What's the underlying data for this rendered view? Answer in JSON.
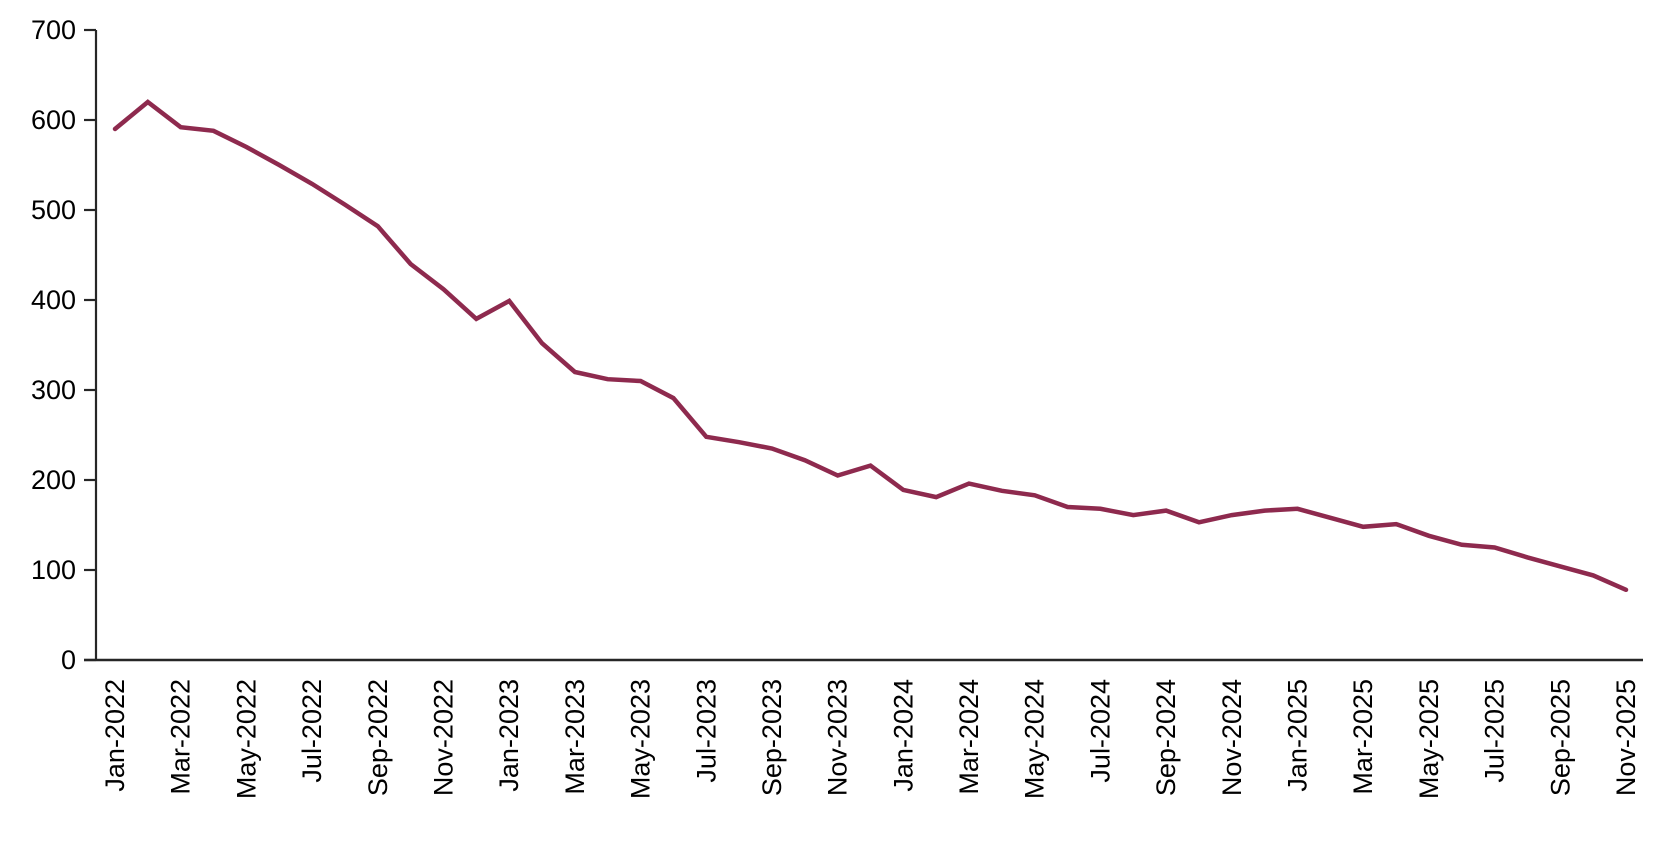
{
  "chart_data": {
    "type": "line",
    "title": "",
    "xlabel": "",
    "ylabel": "",
    "x": [
      "Jan-2022",
      "Feb-2022",
      "Mar-2022",
      "Apr-2022",
      "May-2022",
      "Jun-2022",
      "Jul-2022",
      "Aug-2022",
      "Sep-2022",
      "Oct-2022",
      "Nov-2022",
      "Dec-2022",
      "Jan-2023",
      "Feb-2023",
      "Mar-2023",
      "Apr-2023",
      "May-2023",
      "Jun-2023",
      "Jul-2023",
      "Aug-2023",
      "Sep-2023",
      "Oct-2023",
      "Nov-2023",
      "Dec-2023",
      "Jan-2024",
      "Feb-2024",
      "Mar-2024",
      "Apr-2024",
      "May-2024",
      "Jun-2024",
      "Jul-2024",
      "Aug-2024",
      "Sep-2024",
      "Oct-2024",
      "Nov-2024",
      "Dec-2024",
      "Jan-2025",
      "Feb-2025",
      "Mar-2025",
      "Apr-2025",
      "May-2025",
      "Jun-2025",
      "Jul-2025",
      "Aug-2025",
      "Sep-2025",
      "Oct-2025",
      "Nov-2025"
    ],
    "values": [
      590,
      620,
      592,
      588,
      570,
      550,
      529,
      506,
      482,
      440,
      412,
      379,
      399,
      352,
      320,
      312,
      310,
      291,
      248,
      242,
      235,
      222,
      205,
      216,
      189,
      181,
      196,
      188,
      183,
      170,
      168,
      161,
      166,
      153,
      161,
      166,
      168,
      158,
      148,
      151,
      138,
      128,
      125,
      114,
      104,
      94,
      78
    ],
    "ylim": [
      0,
      700
    ],
    "ytick_interval": 100,
    "ytick_labels": [
      "0",
      "100",
      "200",
      "300",
      "400",
      "500",
      "600",
      "700"
    ],
    "xtick_every": 2,
    "xtick_labels": [
      "Jan-2022",
      "Mar-2022",
      "May-2022",
      "Jul-2022",
      "Sep-2022",
      "Nov-2022",
      "Jan-2023",
      "Mar-2023",
      "May-2023",
      "Jul-2023",
      "Sep-2023",
      "Nov-2023",
      "Jan-2024",
      "Mar-2024",
      "May-2024",
      "Jul-2024",
      "Sep-2024",
      "Nov-2024",
      "Jan-2025",
      "Mar-2025",
      "May-2025",
      "Jul-2025",
      "Sep-2025",
      "Nov-2025"
    ],
    "grid": false,
    "legend": "none",
    "colors": {
      "line": "#8e2a4e",
      "axis": "#262626",
      "text": "#000000"
    }
  }
}
